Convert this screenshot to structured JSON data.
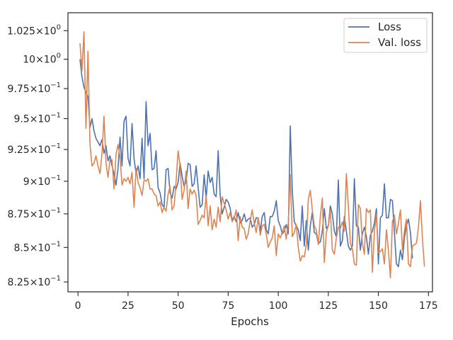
{
  "chart_data": {
    "type": "line",
    "xlabel": "Epochs",
    "ylabel": "",
    "title": "",
    "y_scale": "log",
    "xlim": [
      -5,
      177
    ],
    "ylim": [
      0.818,
      1.041
    ],
    "x_ticks": [
      0,
      25,
      50,
      75,
      100,
      125,
      150,
      175
    ],
    "x_tick_labels": [
      "0",
      "25",
      "50",
      "75",
      "100",
      "125",
      "150",
      "175"
    ],
    "y_ticks": [
      0.825,
      0.85,
      0.875,
      0.9,
      0.925,
      0.95,
      0.975,
      1.0,
      1.025
    ],
    "y_tick_labels": [
      {
        "mant": "8.25",
        "exp": "−1"
      },
      {
        "mant": "8.5",
        "exp": "−1"
      },
      {
        "mant": "8.75",
        "exp": "−1"
      },
      {
        "mant": "9",
        "exp": "−1"
      },
      {
        "mant": "9.25",
        "exp": "−1"
      },
      {
        "mant": "9.5",
        "exp": "−1"
      },
      {
        "mant": "9.75",
        "exp": "−1"
      },
      {
        "mant": "10",
        "exp": "0"
      },
      {
        "mant": "1.025",
        "exp": "0"
      }
    ],
    "y_tick_base": "×10",
    "grid": false,
    "legend_position": "top-right",
    "series": [
      {
        "name": "Loss",
        "color": "#4c72b0",
        "x_start": 1,
        "values": [
          1.0,
          0.985,
          0.976,
          0.972,
          0.968,
          0.943,
          0.95,
          0.94,
          0.934,
          0.931,
          0.928,
          0.933,
          0.922,
          0.928,
          0.916,
          0.92,
          0.912,
          0.906,
          0.897,
          0.91,
          0.935,
          0.912,
          0.948,
          0.952,
          0.918,
          0.912,
          0.946,
          0.918,
          0.906,
          0.912,
          0.902,
          0.934,
          0.902,
          0.964,
          0.928,
          0.938,
          0.909,
          0.91,
          0.924,
          0.895,
          0.891,
          0.882,
          0.88,
          0.909,
          0.91,
          0.891,
          0.887,
          0.896,
          0.894,
          0.899,
          0.914,
          0.904,
          0.896,
          0.9,
          0.914,
          0.913,
          0.896,
          0.898,
          0.912,
          0.895,
          0.88,
          0.882,
          0.905,
          0.887,
          0.908,
          0.899,
          0.903,
          0.89,
          0.888,
          0.924,
          0.889,
          0.875,
          0.88,
          0.886,
          0.884,
          0.879,
          0.87,
          0.873,
          0.869,
          0.876,
          0.868,
          0.87,
          0.875,
          0.869,
          0.871,
          0.872,
          0.865,
          0.867,
          0.872,
          0.872,
          0.862,
          0.873,
          0.876,
          0.863,
          0.86,
          0.873,
          0.873,
          0.877,
          0.885,
          0.87,
          0.866,
          0.86,
          0.862,
          0.867,
          0.86,
          0.944,
          0.893,
          0.869,
          0.866,
          0.863,
          0.855,
          0.881,
          0.851,
          0.87,
          0.848,
          0.866,
          0.876,
          0.861,
          0.86,
          0.853,
          0.854,
          0.862,
          0.879,
          0.864,
          0.866,
          0.881,
          0.875,
          0.862,
          0.858,
          0.901,
          0.851,
          0.855,
          0.873,
          0.862,
          0.851,
          0.848,
          0.851,
          0.902,
          0.866,
          0.865,
          0.848,
          0.86,
          0.865,
          0.858,
          0.845,
          0.859,
          0.862,
          0.868,
          0.879,
          0.838,
          0.872,
          0.874,
          0.898,
          0.872,
          0.872,
          0.886,
          0.885,
          0.861,
          0.838,
          0.836,
          0.848,
          0.841,
          0.857,
          0.866,
          0.871,
          0.861,
          0.842
        ]
      },
      {
        "name": "Val. loss",
        "color": "#dd8452",
        "x_start": 1,
        "values": [
          1.014,
          0.99,
          1.024,
          0.942,
          1.007,
          0.929,
          0.912,
          0.914,
          0.92,
          0.912,
          0.906,
          0.922,
          0.952,
          0.914,
          0.903,
          0.917,
          0.917,
          0.894,
          0.921,
          0.929,
          0.919,
          0.897,
          0.902,
          0.9,
          0.903,
          0.898,
          0.907,
          0.88,
          0.91,
          0.899,
          0.895,
          0.889,
          0.901,
          0.9,
          0.902,
          0.894,
          0.894,
          0.89,
          0.889,
          0.881,
          0.884,
          0.876,
          0.88,
          0.877,
          0.89,
          0.896,
          0.878,
          0.881,
          0.9,
          0.924,
          0.912,
          0.886,
          0.893,
          0.908,
          0.879,
          0.894,
          0.89,
          0.893,
          0.889,
          0.867,
          0.87,
          0.874,
          0.872,
          0.889,
          0.866,
          0.881,
          0.863,
          0.871,
          0.865,
          0.88,
          0.869,
          0.888,
          0.883,
          0.878,
          0.871,
          0.876,
          0.869,
          0.872,
          0.878,
          0.855,
          0.873,
          0.865,
          0.864,
          0.856,
          0.86,
          0.87,
          0.878,
          0.868,
          0.861,
          0.872,
          0.859,
          0.866,
          0.867,
          0.86,
          0.85,
          0.854,
          0.857,
          0.866,
          0.844,
          0.86,
          0.857,
          0.861,
          0.866,
          0.856,
          0.868,
          0.905,
          0.858,
          0.861,
          0.867,
          0.85,
          0.84,
          0.844,
          0.843,
          0.852,
          0.886,
          0.893,
          0.878,
          0.866,
          0.863,
          0.852,
          0.873,
          0.887,
          0.839,
          0.861,
          0.866,
          0.878,
          0.848,
          0.845,
          0.857,
          0.865,
          0.864,
          0.869,
          0.862,
          0.906,
          0.881,
          0.853,
          0.849,
          0.838,
          0.837,
          0.882,
          0.879,
          0.853,
          0.845,
          0.879,
          0.876,
          0.878,
          0.832,
          0.862,
          0.875,
          0.846,
          0.847,
          0.849,
          0.838,
          0.863,
          0.848,
          0.828,
          0.869,
          0.874,
          0.86,
          0.868,
          0.878,
          0.848,
          0.862,
          0.871,
          0.838,
          0.836,
          0.851,
          0.852,
          0.853,
          0.865,
          0.885,
          0.856,
          0.836
        ]
      }
    ]
  }
}
